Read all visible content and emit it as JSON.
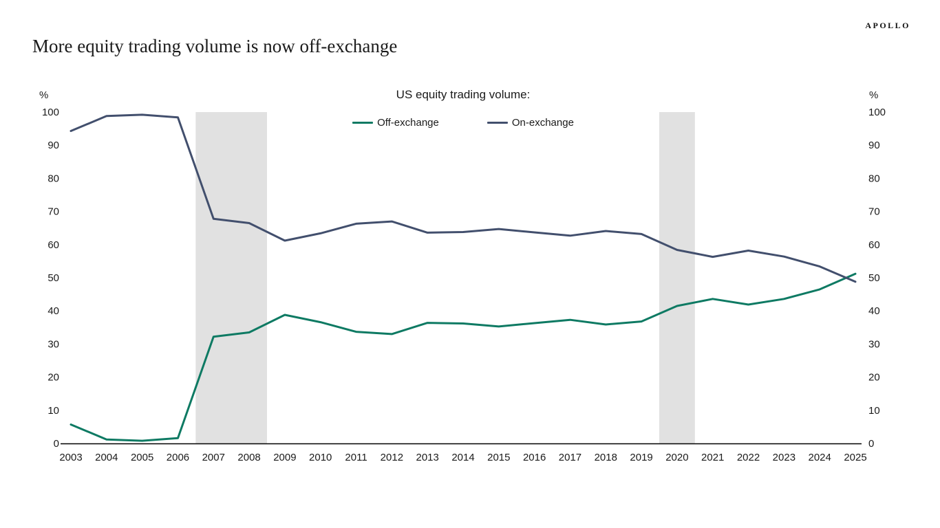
{
  "brand": "APOLLO",
  "page_title": "More equity trading volume is now off-exchange",
  "chart_data": {
    "type": "line",
    "title": "US equity trading volume:",
    "y_unit": "%",
    "ylim": [
      0,
      100
    ],
    "yticks": [
      0,
      10,
      20,
      30,
      40,
      50,
      60,
      70,
      80,
      90,
      100
    ],
    "grid": false,
    "legend_position": "top-center",
    "x": [
      2003,
      2004,
      2005,
      2006,
      2007,
      2008,
      2009,
      2010,
      2011,
      2012,
      2013,
      2014,
      2015,
      2016,
      2017,
      2018,
      2019,
      2020,
      2021,
      2022,
      2023,
      2024,
      2025
    ],
    "series": [
      {
        "name": "Off-exchange",
        "color": "#0e7a63",
        "values": [
          5.7,
          1.2,
          0.8,
          1.6,
          32.2,
          33.5,
          38.8,
          36.6,
          33.7,
          33.0,
          36.4,
          36.2,
          35.3,
          36.3,
          37.3,
          35.9,
          36.8,
          41.5,
          43.6,
          41.9,
          43.6,
          46.5,
          51.2
        ]
      },
      {
        "name": "On-exchange",
        "color": "#424f6d",
        "values": [
          94.3,
          98.8,
          99.2,
          98.4,
          67.8,
          66.5,
          61.2,
          63.4,
          66.3,
          67.0,
          63.6,
          63.8,
          64.7,
          63.7,
          62.7,
          64.1,
          63.2,
          58.4,
          56.3,
          58.2,
          56.4,
          53.4,
          48.8
        ]
      }
    ],
    "shaded_regions": [
      {
        "from": 2006.5,
        "to": 2008.5
      },
      {
        "from": 2019.5,
        "to": 2020.5
      }
    ],
    "shade_color": "#e1e1e1",
    "axis_color": "#000000"
  }
}
